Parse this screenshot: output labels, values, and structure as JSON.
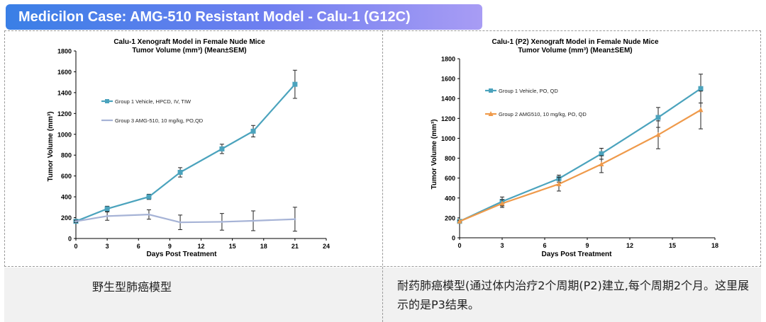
{
  "banner": {
    "title": "Medicilon Case: AMG-510 Resistant Model - Calu-1 (G12C)"
  },
  "captions": {
    "left": "野生型肺癌模型",
    "right": "耐药肺癌模型(通过体内治疗2个周期(P2)建立,每个周期2个月。这里展示的是P3结果。"
  },
  "chart_data": [
    {
      "type": "line",
      "title": "Calu-1 Xenograft Model in Female Nude Mice",
      "subtitle": "Tumor Volume (mm³) (Mean±SEM)",
      "xlabel": "Days Post Treatment",
      "ylabel": "Tumor Volume (mm³)",
      "xlim": [
        0,
        24
      ],
      "ylim": [
        0,
        1800
      ],
      "xticks": [
        0,
        3,
        6,
        9,
        12,
        15,
        18,
        21,
        24
      ],
      "yticks": [
        0,
        200,
        400,
        600,
        800,
        1000,
        1200,
        1400,
        1600,
        1800
      ],
      "legend_position": "upper-left",
      "series": [
        {
          "name": "Group 1 Vehicle, HPCD, IV, TIW",
          "color": "#4ba3bd",
          "marker": "square",
          "x": [
            0,
            3,
            7,
            10,
            14,
            17,
            21
          ],
          "y": [
            165,
            285,
            400,
            635,
            860,
            1030,
            1480
          ],
          "err": [
            10,
            25,
            25,
            45,
            45,
            55,
            135
          ]
        },
        {
          "name": "Group 3 AMG-510, 10 mg/kg, PO,QD",
          "color": "#a6b3d6",
          "marker": "none",
          "x": [
            0,
            3,
            7,
            10,
            14,
            17,
            21
          ],
          "y": [
            165,
            215,
            230,
            155,
            160,
            170,
            185
          ],
          "err": [
            10,
            40,
            45,
            70,
            80,
            95,
            115
          ]
        }
      ]
    },
    {
      "type": "line",
      "title": "Calu-1 (P2) Xenograft Model in Female Nude Mice",
      "subtitle": "Tumor Volume (mm³) (Mean±SEM)",
      "xlabel": "Days Post Treatment",
      "ylabel": "Tumor Volume (mm³)",
      "xlim": [
        0,
        18
      ],
      "ylim": [
        0,
        1800
      ],
      "xticks": [
        0,
        3,
        6,
        9,
        12,
        15,
        18
      ],
      "yticks": [
        0,
        200,
        400,
        600,
        800,
        1000,
        1200,
        1400,
        1600,
        1800
      ],
      "legend_position": "upper-left",
      "series": [
        {
          "name": "Group 1 Vehicle, PO, QD",
          "color": "#4ba3bd",
          "marker": "square",
          "x": [
            0,
            3,
            7,
            10,
            14,
            17
          ],
          "y": [
            165,
            365,
            595,
            845,
            1210,
            1500
          ],
          "err": [
            10,
            45,
            35,
            55,
            100,
            145
          ]
        },
        {
          "name": "Group 2 AMG510, 10 mg/kg, PO, QD",
          "color": "#ef9a4b",
          "marker": "triangle",
          "x": [
            0,
            3,
            7,
            10,
            14,
            17
          ],
          "y": [
            165,
            345,
            540,
            740,
            1035,
            1285
          ],
          "err": [
            10,
            40,
            70,
            85,
            140,
            190
          ]
        }
      ]
    }
  ]
}
